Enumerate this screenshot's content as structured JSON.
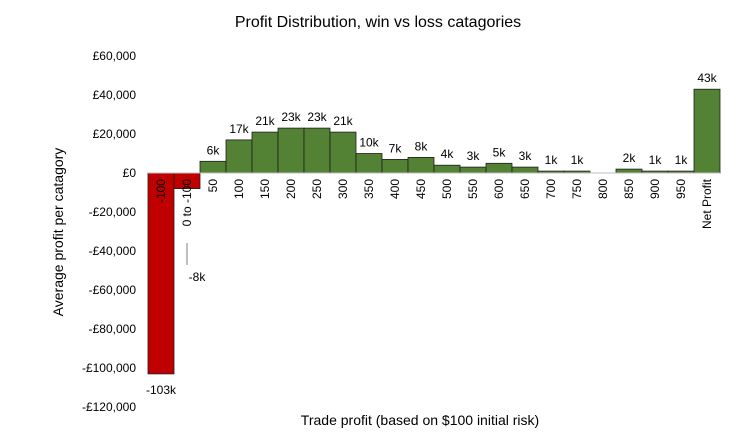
{
  "chart_data": {
    "type": "bar",
    "title": "Profit Distribution, win vs loss catagories",
    "xlabel": "Trade profit (based on $100 initial risk)",
    "ylabel": "Average profit per catagory",
    "ylim": [
      -120000,
      60000
    ],
    "yticks": [
      60000,
      40000,
      20000,
      0,
      -20000,
      -40000,
      -60000,
      -80000,
      -100000,
      -120000
    ],
    "ytick_labels": [
      "£60,000",
      "£40,000",
      "£20,000",
      "£0",
      "-£20,000",
      "-£40,000",
      "-£60,000",
      "-£80,000",
      "-£100,000",
      "-£120,000"
    ],
    "grid": false,
    "legend": "none",
    "categories": [
      "-100",
      "0 to -100",
      "50",
      "100",
      "150",
      "200",
      "250",
      "300",
      "350",
      "400",
      "450",
      "500",
      "550",
      "600",
      "650",
      "700",
      "750",
      "800",
      "850",
      "900",
      "950",
      "Net Profit"
    ],
    "values": [
      -103000,
      -8000,
      6000,
      17000,
      21000,
      23000,
      23000,
      21000,
      10000,
      7000,
      8000,
      4000,
      3000,
      5000,
      3000,
      1000,
      1000,
      0,
      2000,
      1000,
      1000,
      43000
    ],
    "data_labels": [
      "-103k",
      "-8k",
      "6k",
      "17k",
      "21k",
      "23k",
      "23k",
      "21k",
      "10k",
      "7k",
      "8k",
      "4k",
      "3k",
      "5k",
      "3k",
      "1k",
      "1k",
      "",
      "2k",
      "1k",
      "1k",
      "43k"
    ],
    "colors": {
      "loss": "#c00000",
      "win": "#548235",
      "edge": "#1f1f1f"
    }
  }
}
